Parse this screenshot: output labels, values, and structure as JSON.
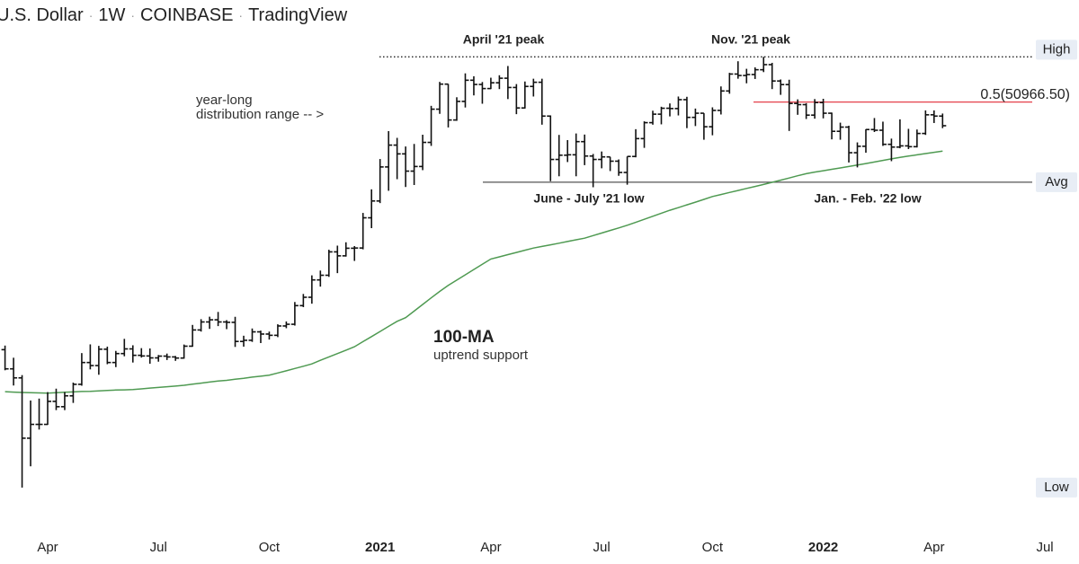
{
  "chart_data": {
    "type": "ohlc",
    "title_parts": [
      "U.S. Dollar",
      "1W",
      "COINBASE",
      "TradingView"
    ],
    "log_scale": true,
    "ylim": [
      2900,
      101000
    ],
    "color": "#111111",
    "categories": [
      null,
      null,
      null,
      null,
      null,
      "Apr",
      null,
      null,
      null,
      null,
      null,
      null,
      null,
      null,
      null,
      null,
      null,
      null,
      "Jul",
      null,
      null,
      null,
      null,
      null,
      null,
      null,
      null,
      null,
      null,
      null,
      null,
      "Oct",
      null,
      null,
      null,
      null,
      null,
      null,
      null,
      null,
      null,
      null,
      null,
      null,
      "2021",
      null,
      null,
      null,
      null,
      null,
      null,
      null,
      null,
      null,
      null,
      null,
      null,
      "Apr",
      null,
      null,
      null,
      null,
      null,
      null,
      null,
      null,
      null,
      null,
      null,
      null,
      "Jul",
      null,
      null,
      null,
      null,
      null,
      null,
      null,
      null,
      null,
      null,
      null,
      null,
      "Oct",
      null,
      null,
      null,
      null,
      null,
      null,
      null,
      null,
      null,
      null,
      null,
      null,
      "2022",
      null,
      null,
      null,
      null,
      null,
      null,
      null,
      null,
      null,
      null,
      null,
      null,
      "Apr",
      null,
      null,
      null,
      null,
      null,
      null,
      null,
      null,
      null,
      null,
      null,
      null,
      "Jul"
    ],
    "open": [
      9700,
      8530,
      8030,
      5360,
      5880,
      5880,
      6860,
      6620,
      7120,
      7690,
      8900,
      8720,
      9730,
      8900,
      9450,
      9750,
      9340,
      9300,
      9180,
      9290,
      9240,
      9170,
      9930,
      11070,
      11680,
      11850,
      11680,
      11650,
      10250,
      10330,
      10930,
      10770,
      10680,
      11370,
      11500,
      13030,
      13780,
      15480,
      15970,
      18680,
      18190,
      19140,
      19170,
      23470,
      26270,
      33000,
      38200,
      36020,
      32090,
      33100,
      38900,
      48600,
      57480,
      45200,
      51200,
      59000,
      57350,
      55800,
      58000,
      59800,
      56200,
      49000,
      56600,
      58200,
      46400,
      34700,
      35700,
      35800,
      39100,
      35500,
      34700,
      35300,
      34300,
      31800,
      35400,
      39900,
      44400,
      47000,
      48900,
      48800,
      51800,
      46000,
      47300,
      43200,
      48200,
      54900,
      61500,
      60900,
      61300,
      63300,
      65500,
      58700,
      57300,
      50500,
      50100,
      46700,
      50800,
      47300,
      41900,
      43100,
      36300,
      37900,
      42400,
      42200,
      38400,
      37700,
      38000,
      37800,
      41300,
      46800,
      46400,
      null,
      null,
      null,
      null,
      null,
      null,
      null,
      null,
      null,
      null,
      null,
      null
    ],
    "high": [
      9970,
      9190,
      8180,
      6900,
      6990,
      7300,
      7470,
      7300,
      7780,
      9480,
      10050,
      9950,
      9900,
      9620,
      10430,
      9990,
      9800,
      9780,
      9360,
      9450,
      9300,
      10040,
      11450,
      11900,
      12100,
      12490,
      11820,
      12090,
      10650,
      11180,
      11020,
      10950,
      11500,
      11720,
      13350,
      14090,
      15960,
      16480,
      18950,
      19480,
      19920,
      19420,
      24250,
      28400,
      34800,
      41950,
      40100,
      37850,
      38500,
      40950,
      49700,
      58350,
      57540,
      52640,
      61780,
      60600,
      58300,
      60000,
      61000,
      64900,
      57500,
      58500,
      59600,
      59600,
      46600,
      40900,
      39500,
      41300,
      41000,
      36000,
      36600,
      35300,
      34700,
      35400,
      42500,
      44800,
      48100,
      49400,
      50500,
      52900,
      52800,
      48800,
      47300,
      49200,
      56600,
      62000,
      67000,
      63700,
      64300,
      69000,
      66300,
      59300,
      59200,
      51900,
      50600,
      52000,
      52100,
      47500,
      44400,
      43500,
      38900,
      42500,
      45800,
      44700,
      39900,
      45400,
      42600,
      42400,
      48200,
      48200,
      47200,
      null,
      null,
      null,
      null,
      null,
      null,
      null,
      null,
      null,
      null,
      null,
      null
    ],
    "low": [
      8450,
      7630,
      3850,
      4440,
      5680,
      5860,
      6470,
      6470,
      6790,
      7620,
      8500,
      8200,
      8800,
      8630,
      9280,
      8900,
      9200,
      8830,
      8950,
      9050,
      9000,
      9130,
      9890,
      10950,
      11150,
      11360,
      11130,
      9880,
      9900,
      10220,
      10140,
      10380,
      10550,
      11200,
      11400,
      12900,
      13200,
      14800,
      15800,
      16200,
      18100,
      17580,
      19000,
      21900,
      25900,
      28130,
      30400,
      28850,
      29240,
      32300,
      38000,
      47100,
      43000,
      44950,
      49150,
      53300,
      50400,
      55600,
      55600,
      52000,
      47000,
      48800,
      52900,
      43800,
      30000,
      31000,
      34100,
      31000,
      33400,
      28800,
      32700,
      32100,
      31100,
      29300,
      35200,
      37500,
      43800,
      43900,
      46300,
      46600,
      42800,
      43400,
      39600,
      40800,
      46900,
      53900,
      59600,
      57800,
      59500,
      62300,
      55600,
      53500,
      42000,
      46800,
      45500,
      45600,
      45700,
      39700,
      39600,
      34000,
      32900,
      36300,
      41700,
      38000,
      34300,
      37400,
      37200,
      37600,
      40900,
      44300,
      42800,
      null,
      null,
      null,
      null,
      null,
      null,
      null,
      null,
      null,
      null,
      null,
      null
    ],
    "close": [
      8530,
      8030,
      5360,
      5880,
      5880,
      6860,
      6620,
      7120,
      7690,
      8900,
      8720,
      9730,
      8900,
      9450,
      9750,
      9340,
      9300,
      9180,
      9290,
      9240,
      9170,
      9930,
      11070,
      11680,
      11850,
      11680,
      11650,
      10250,
      10330,
      10930,
      10770,
      10680,
      11370,
      11500,
      13030,
      13780,
      15480,
      15970,
      18680,
      18190,
      19140,
      19170,
      23470,
      26270,
      33000,
      38200,
      36020,
      32090,
      33100,
      38900,
      48600,
      57480,
      45200,
      51200,
      59000,
      57350,
      55800,
      58000,
      59800,
      56200,
      49000,
      56600,
      58200,
      46400,
      34700,
      35700,
      35800,
      39100,
      35500,
      34700,
      35300,
      34300,
      31800,
      35400,
      39900,
      44400,
      47000,
      48900,
      48800,
      51800,
      46000,
      47300,
      43200,
      48200,
      54900,
      61500,
      60900,
      61300,
      63300,
      65500,
      58700,
      57300,
      50500,
      50100,
      46700,
      50800,
      47300,
      41900,
      43100,
      36300,
      37900,
      42400,
      42200,
      38400,
      37700,
      38000,
      37800,
      41300,
      46800,
      46400,
      43500,
      null,
      null,
      null,
      null,
      null,
      null,
      null,
      null,
      null,
      null,
      null,
      null
    ],
    "overlay": {
      "color": "#4f9a52",
      "values": [
        7320,
        7300,
        7280,
        7270,
        7260,
        7250,
        7270,
        7290,
        7310,
        7330,
        7340,
        7360,
        7380,
        7400,
        7410,
        7430,
        7460,
        7500,
        7530,
        7570,
        7600,
        7640,
        7700,
        7750,
        7810,
        7860,
        7900,
        7960,
        8010,
        8070,
        8120,
        8180,
        8300,
        8420,
        8550,
        8680,
        8820,
        9030,
        9240,
        9450,
        9670,
        9890,
        10240,
        10590,
        10960,
        11340,
        11730,
        12020,
        12560,
        13130,
        13720,
        14330,
        14920,
        15460,
        16020,
        16600,
        17200,
        17810,
        18070,
        18340,
        18610,
        18890,
        19170,
        19370,
        19580,
        19800,
        20020,
        20250,
        20480,
        20830,
        21190,
        21560,
        21930,
        22330,
        22770,
        23240,
        23710,
        24200,
        24690,
        25130,
        25600,
        26070,
        26560,
        27070,
        27430,
        27810,
        28190,
        28570,
        28960,
        29350,
        29770,
        30210,
        30650,
        31100,
        31550,
        31880,
        32180,
        32480,
        32780,
        33100,
        33410,
        33760,
        34110,
        34470,
        34840,
        35190,
        35490,
        35790,
        36090,
        36400,
        36710,
        null,
        null,
        null,
        null,
        null,
        null,
        null,
        null,
        null,
        null,
        null,
        null
      ]
    },
    "levels": [
      {
        "label": "High",
        "value": 69000,
        "line": "dotted",
        "color": "#222222"
      },
      {
        "label": "0.5(50966.50)",
        "value": 50966.5,
        "line": "solid",
        "color": "#e5404a"
      },
      {
        "label": "Avg",
        "value": 29800,
        "line": "solid",
        "color": "#555555"
      },
      {
        "label": "Low",
        "value": 3850,
        "line": "none",
        "color": "#222222"
      }
    ],
    "annotations": [
      "April '21 peak",
      "Nov. '21 peak",
      "June - July '21 low",
      "Jan. - Feb. '22 low",
      "100-MA",
      "uptrend support",
      "year-long",
      "distribution range -- >"
    ]
  }
}
